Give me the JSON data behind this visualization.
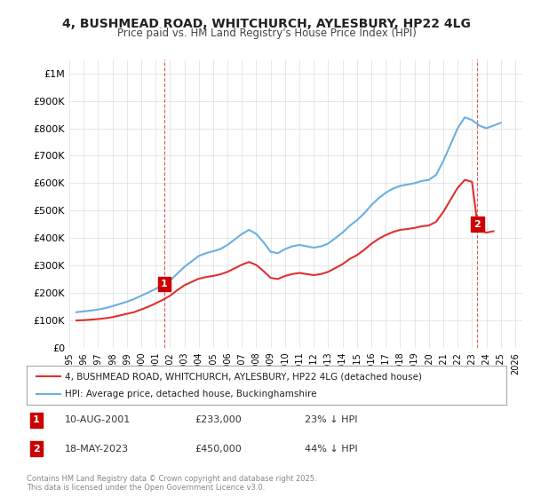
{
  "title_line1": "4, BUSHMEAD ROAD, WHITCHURCH, AYLESBURY, HP22 4LG",
  "title_line2": "Price paid vs. HM Land Registry's House Price Index (HPI)",
  "xlim": [
    1995.0,
    2026.5
  ],
  "ylim": [
    0,
    1050000
  ],
  "yticks": [
    0,
    100000,
    200000,
    300000,
    400000,
    500000,
    600000,
    700000,
    800000,
    900000,
    1000000
  ],
  "ytick_labels": [
    "£0",
    "£100K",
    "£200K",
    "£300K",
    "£400K",
    "£500K",
    "£600K",
    "£700K",
    "£800K",
    "£900K",
    "£1M"
  ],
  "xticks": [
    1995,
    1996,
    1997,
    1998,
    1999,
    2000,
    2001,
    2002,
    2003,
    2004,
    2005,
    2006,
    2007,
    2008,
    2009,
    2010,
    2011,
    2012,
    2013,
    2014,
    2015,
    2016,
    2017,
    2018,
    2019,
    2020,
    2021,
    2022,
    2023,
    2024,
    2025,
    2026
  ],
  "hpi_color": "#6ab0e0",
  "price_color": "#e03030",
  "vline_color": "#e03030",
  "annotation_box_color": "#cc0000",
  "transaction1_x": 2001.6,
  "transaction1_y": 233000,
  "transaction1_label": "1",
  "transaction2_x": 2023.38,
  "transaction2_y": 450000,
  "transaction2_label": "2",
  "legend_line1": "4, BUSHMEAD ROAD, WHITCHURCH, AYLESBURY, HP22 4LG (detached house)",
  "legend_line2": "HPI: Average price, detached house, Buckinghamshire",
  "annotation1_date": "10-AUG-2001",
  "annotation1_price": "£233,000",
  "annotation1_pct": "23% ↓ HPI",
  "annotation2_date": "18-MAY-2023",
  "annotation2_price": "£450,000",
  "annotation2_pct": "44% ↓ HPI",
  "footnote": "Contains HM Land Registry data © Crown copyright and database right 2025.\nThis data is licensed under the Open Government Licence v3.0.",
  "bg_color": "#ffffff",
  "grid_color": "#dddddd",
  "hpi_data_x": [
    1995.5,
    1996.0,
    1996.5,
    1997.0,
    1997.5,
    1998.0,
    1998.5,
    1999.0,
    1999.5,
    2000.0,
    2000.5,
    2001.0,
    2001.5,
    2002.0,
    2002.5,
    2003.0,
    2003.5,
    2004.0,
    2004.5,
    2005.0,
    2005.5,
    2006.0,
    2006.5,
    2007.0,
    2007.5,
    2008.0,
    2008.5,
    2009.0,
    2009.5,
    2010.0,
    2010.5,
    2011.0,
    2011.5,
    2012.0,
    2012.5,
    2013.0,
    2013.5,
    2014.0,
    2014.5,
    2015.0,
    2015.5,
    2016.0,
    2016.5,
    2017.0,
    2017.5,
    2018.0,
    2018.5,
    2019.0,
    2019.5,
    2020.0,
    2020.5,
    2021.0,
    2021.5,
    2022.0,
    2022.5,
    2023.0,
    2023.5,
    2024.0,
    2024.5,
    2025.0
  ],
  "hpi_data_y": [
    130000,
    133000,
    136000,
    140000,
    145000,
    152000,
    160000,
    168000,
    178000,
    190000,
    202000,
    215000,
    228000,
    245000,
    270000,
    295000,
    315000,
    335000,
    345000,
    352000,
    360000,
    375000,
    395000,
    415000,
    430000,
    415000,
    385000,
    350000,
    345000,
    360000,
    370000,
    375000,
    370000,
    365000,
    370000,
    380000,
    400000,
    420000,
    445000,
    465000,
    490000,
    520000,
    545000,
    565000,
    580000,
    590000,
    595000,
    600000,
    608000,
    612000,
    630000,
    680000,
    740000,
    800000,
    840000,
    830000,
    810000,
    800000,
    810000,
    820000
  ],
  "price_data_x": [
    1995.5,
    1996.0,
    1996.5,
    1997.0,
    1997.5,
    1998.0,
    1998.5,
    1999.0,
    1999.5,
    2000.0,
    2000.5,
    2001.0,
    2001.5,
    2002.0,
    2002.5,
    2003.0,
    2003.5,
    2004.0,
    2004.5,
    2005.0,
    2005.5,
    2006.0,
    2006.5,
    2007.0,
    2007.5,
    2008.0,
    2008.5,
    2009.0,
    2009.5,
    2010.0,
    2010.5,
    2011.0,
    2011.5,
    2012.0,
    2012.5,
    2013.0,
    2013.5,
    2014.0,
    2014.5,
    2015.0,
    2015.5,
    2016.0,
    2016.5,
    2017.0,
    2017.5,
    2018.0,
    2018.5,
    2019.0,
    2019.5,
    2020.0,
    2020.5,
    2021.0,
    2021.5,
    2022.0,
    2022.5,
    2023.0,
    2023.38,
    2023.5,
    2024.0,
    2024.5
  ],
  "price_data_y": [
    100000,
    101000,
    103000,
    105000,
    108000,
    112000,
    118000,
    124000,
    130000,
    140000,
    150000,
    162000,
    175000,
    190000,
    210000,
    228000,
    240000,
    252000,
    258000,
    262000,
    268000,
    277000,
    290000,
    303000,
    313000,
    302000,
    280000,
    255000,
    251000,
    262000,
    269000,
    273000,
    269000,
    265000,
    269000,
    277000,
    291000,
    305000,
    324000,
    338000,
    357000,
    379000,
    397000,
    411000,
    422000,
    430000,
    433000,
    437000,
    443000,
    446000,
    459000,
    495000,
    539000,
    583000,
    612000,
    605000,
    450000,
    430000,
    420000,
    425000
  ]
}
